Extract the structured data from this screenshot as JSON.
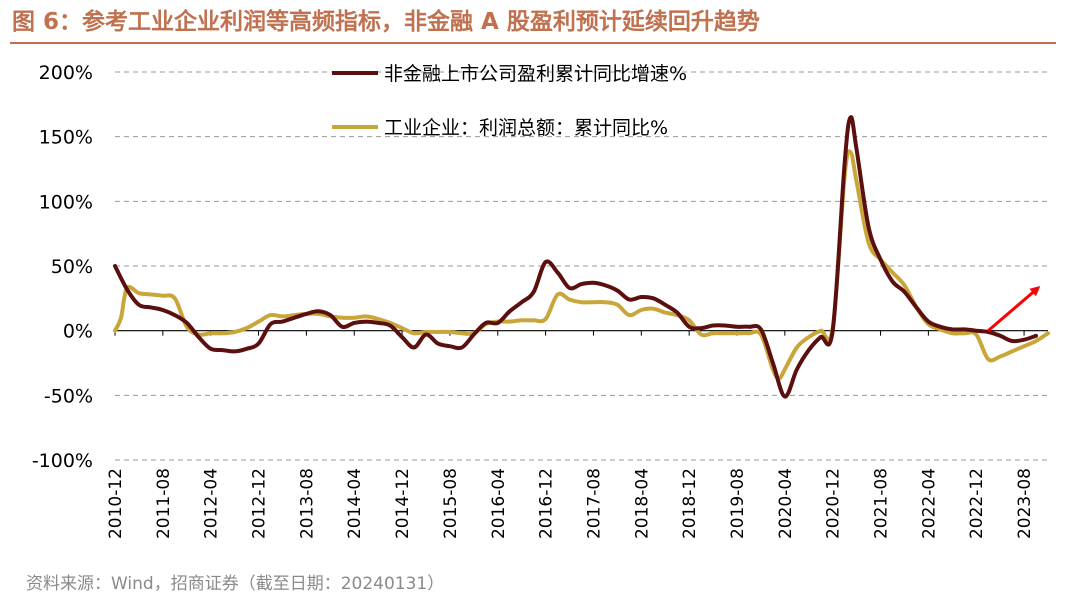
{
  "figure": {
    "title": "图 6：参考工业企业利润等高频指标，非金融 A 股盈利预计延续回升趋势",
    "source": "资料来源：Wind，招商证券（截至日期：20240131）"
  },
  "chart_data": {
    "type": "line",
    "title": "图 6：参考工业企业利润等高频指标，非金融 A 股盈利预计延续回升趋势",
    "xlabel": "",
    "ylabel": "",
    "ylim": [
      -100,
      200
    ],
    "yticks": [
      -100,
      -50,
      0,
      50,
      100,
      150,
      200
    ],
    "ytick_labels": [
      "-100%",
      "-50%",
      "0%",
      "50%",
      "100%",
      "150%",
      "200%"
    ],
    "xticks": [
      "2010-12",
      "2011-08",
      "2012-04",
      "2012-12",
      "2013-08",
      "2014-04",
      "2014-12",
      "2015-08",
      "2016-04",
      "2016-12",
      "2017-08",
      "2018-04",
      "2018-12",
      "2019-08",
      "2020-04",
      "2020-12",
      "2021-08",
      "2022-04",
      "2022-12",
      "2023-08"
    ],
    "grid": true,
    "legend_position": "top-center",
    "series": [
      {
        "name": "非金融上市公司盈利累计同比增速%",
        "color": "#5b0f0f",
        "points": [
          [
            "2010-12",
            50
          ],
          [
            "2011-02",
            32
          ],
          [
            "2011-04",
            20
          ],
          [
            "2011-06",
            18
          ],
          [
            "2011-08",
            16
          ],
          [
            "2011-10",
            12
          ],
          [
            "2011-12",
            6
          ],
          [
            "2012-02",
            -5
          ],
          [
            "2012-04",
            -14
          ],
          [
            "2012-06",
            -15
          ],
          [
            "2012-08",
            -16
          ],
          [
            "2012-10",
            -14
          ],
          [
            "2012-12",
            -10
          ],
          [
            "2013-02",
            5
          ],
          [
            "2013-04",
            7
          ],
          [
            "2013-06",
            10
          ],
          [
            "2013-08",
            13
          ],
          [
            "2013-10",
            15
          ],
          [
            "2013-12",
            12
          ],
          [
            "2014-02",
            3
          ],
          [
            "2014-04",
            6
          ],
          [
            "2014-06",
            7
          ],
          [
            "2014-08",
            6
          ],
          [
            "2014-10",
            4
          ],
          [
            "2014-12",
            -5
          ],
          [
            "2015-02",
            -13
          ],
          [
            "2015-04",
            -3
          ],
          [
            "2015-06",
            -10
          ],
          [
            "2015-08",
            -12
          ],
          [
            "2015-10",
            -13
          ],
          [
            "2015-12",
            -3
          ],
          [
            "2016-02",
            6
          ],
          [
            "2016-04",
            6
          ],
          [
            "2016-06",
            15
          ],
          [
            "2016-08",
            22
          ],
          [
            "2016-10",
            30
          ],
          [
            "2016-12",
            53
          ],
          [
            "2017-02",
            45
          ],
          [
            "2017-04",
            33
          ],
          [
            "2017-06",
            36
          ],
          [
            "2017-08",
            37
          ],
          [
            "2017-10",
            35
          ],
          [
            "2017-12",
            31
          ],
          [
            "2018-02",
            24
          ],
          [
            "2018-04",
            26
          ],
          [
            "2018-06",
            25
          ],
          [
            "2018-08",
            20
          ],
          [
            "2018-10",
            14
          ],
          [
            "2018-12",
            3
          ],
          [
            "2019-02",
            2
          ],
          [
            "2019-04",
            4
          ],
          [
            "2019-06",
            4
          ],
          [
            "2019-08",
            3
          ],
          [
            "2019-10",
            3
          ],
          [
            "2019-12",
            1
          ],
          [
            "2020-02",
            -25
          ],
          [
            "2020-04",
            -51
          ],
          [
            "2020-06",
            -30
          ],
          [
            "2020-08",
            -15
          ],
          [
            "2020-10",
            -5
          ],
          [
            "2020-12",
            0
          ],
          [
            "2021-02",
            130
          ],
          [
            "2021-03",
            165
          ],
          [
            "2021-04",
            140
          ],
          [
            "2021-06",
            80
          ],
          [
            "2021-08",
            55
          ],
          [
            "2021-10",
            38
          ],
          [
            "2021-12",
            30
          ],
          [
            "2022-02",
            18
          ],
          [
            "2022-04",
            7
          ],
          [
            "2022-06",
            3
          ],
          [
            "2022-08",
            1
          ],
          [
            "2022-10",
            1
          ],
          [
            "2022-12",
            0
          ],
          [
            "2023-02",
            -1
          ],
          [
            "2023-04",
            -4
          ],
          [
            "2023-06",
            -8
          ],
          [
            "2023-08",
            -7
          ],
          [
            "2023-10",
            -4
          ]
        ]
      },
      {
        "name": "工业企业：利润总额：累计同比%",
        "color": "#c8a63a",
        "points": [
          [
            "2010-12",
            0
          ],
          [
            "2011-01",
            10
          ],
          [
            "2011-02",
            33
          ],
          [
            "2011-04",
            29
          ],
          [
            "2011-06",
            28
          ],
          [
            "2011-08",
            27
          ],
          [
            "2011-10",
            25
          ],
          [
            "2011-12",
            3
          ],
          [
            "2012-02",
            -3
          ],
          [
            "2012-04",
            -2
          ],
          [
            "2012-06",
            -2
          ],
          [
            "2012-08",
            -1
          ],
          [
            "2012-10",
            2
          ],
          [
            "2012-12",
            7
          ],
          [
            "2013-02",
            12
          ],
          [
            "2013-04",
            11
          ],
          [
            "2013-06",
            12
          ],
          [
            "2013-08",
            13
          ],
          [
            "2013-10",
            13
          ],
          [
            "2013-12",
            11
          ],
          [
            "2014-02",
            10
          ],
          [
            "2014-04",
            10
          ],
          [
            "2014-06",
            11
          ],
          [
            "2014-08",
            9
          ],
          [
            "2014-10",
            6
          ],
          [
            "2014-12",
            2
          ],
          [
            "2015-02",
            -2
          ],
          [
            "2015-04",
            -1
          ],
          [
            "2015-06",
            -1
          ],
          [
            "2015-08",
            -1
          ],
          [
            "2015-10",
            -2
          ],
          [
            "2015-12",
            -2
          ],
          [
            "2016-02",
            5
          ],
          [
            "2016-04",
            7
          ],
          [
            "2016-06",
            7
          ],
          [
            "2016-08",
            8
          ],
          [
            "2016-10",
            8
          ],
          [
            "2016-12",
            9
          ],
          [
            "2017-02",
            28
          ],
          [
            "2017-04",
            24
          ],
          [
            "2017-06",
            22
          ],
          [
            "2017-08",
            22
          ],
          [
            "2017-10",
            22
          ],
          [
            "2017-12",
            20
          ],
          [
            "2018-02",
            12
          ],
          [
            "2018-04",
            16
          ],
          [
            "2018-06",
            17
          ],
          [
            "2018-08",
            14
          ],
          [
            "2018-10",
            12
          ],
          [
            "2018-12",
            8
          ],
          [
            "2019-02",
            -3
          ],
          [
            "2019-04",
            -2
          ],
          [
            "2019-06",
            -2
          ],
          [
            "2019-08",
            -2
          ],
          [
            "2019-10",
            -2
          ],
          [
            "2019-12",
            -3
          ],
          [
            "2020-02",
            -30
          ],
          [
            "2020-03",
            -37
          ],
          [
            "2020-04",
            -30
          ],
          [
            "2020-06",
            -13
          ],
          [
            "2020-08",
            -5
          ],
          [
            "2020-10",
            0
          ],
          [
            "2020-12",
            2
          ],
          [
            "2021-02",
            120
          ],
          [
            "2021-03",
            138
          ],
          [
            "2021-04",
            115
          ],
          [
            "2021-06",
            68
          ],
          [
            "2021-08",
            55
          ],
          [
            "2021-10",
            45
          ],
          [
            "2021-12",
            35
          ],
          [
            "2022-02",
            18
          ],
          [
            "2022-04",
            5
          ],
          [
            "2022-06",
            1
          ],
          [
            "2022-08",
            -2
          ],
          [
            "2022-10",
            -2
          ],
          [
            "2022-12",
            -3
          ],
          [
            "2023-02",
            -22
          ],
          [
            "2023-04",
            -20
          ],
          [
            "2023-06",
            -16
          ],
          [
            "2023-08",
            -12
          ],
          [
            "2023-10",
            -8
          ],
          [
            "2023-12",
            -2
          ]
        ]
      }
    ],
    "annotations": [
      {
        "type": "arrow",
        "color": "#ff0000",
        "from": [
          "2022-12",
          0
        ],
        "to": [
          "2023-12",
          33
        ]
      }
    ]
  }
}
